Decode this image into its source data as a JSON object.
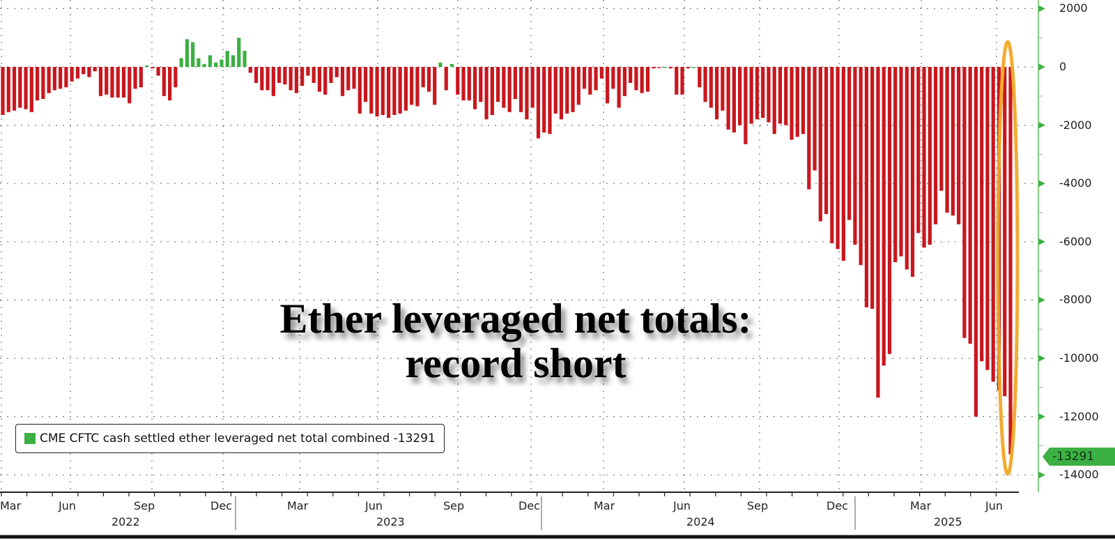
{
  "chart_data": {
    "type": "bar",
    "title": "Ether leveraged net totals: record short",
    "title_lines": [
      "Ether leveraged net totals:",
      "record short"
    ],
    "xlabel": "",
    "ylabel": "",
    "ylim": [
      -14500,
      2200
    ],
    "grid": true,
    "legend_position": "bottom-left",
    "legend": [
      {
        "label": "CME CFTC cash settled ether leveraged net total combined -13291",
        "color": "#3cb043"
      }
    ],
    "series": [
      {
        "name": "CME CFTC cash settled ether leveraged net total combined",
        "last_value": -13291
      }
    ],
    "x_month_ticks": [
      "Mar",
      "Jun",
      "Sep",
      "Dec",
      "Mar",
      "Jun",
      "Sep",
      "Dec",
      "Mar",
      "Jun",
      "Sep",
      "Dec",
      "Mar",
      "Jun"
    ],
    "x_year_labels": [
      "2022",
      "2023",
      "2024",
      "2025"
    ],
    "y_ticks": [
      2000,
      0,
      -2000,
      -4000,
      -6000,
      -8000,
      -10000,
      -12000,
      -14000
    ],
    "last_value_label": "-13291",
    "positive_color": "#3cb043",
    "negative_color": "#c8171e",
    "annotation": "orange ellipse highlighting latest bars",
    "values": [
      -1650,
      -1550,
      -1500,
      -1400,
      -1450,
      -1550,
      -1150,
      -1100,
      -900,
      -800,
      -750,
      -700,
      -500,
      -400,
      -250,
      -350,
      -150,
      -1000,
      -950,
      -1050,
      -1050,
      -1050,
      -1250,
      -750,
      -700,
      50,
      -50,
      -300,
      -1000,
      -1150,
      -700,
      300,
      950,
      850,
      300,
      100,
      400,
      150,
      250,
      550,
      400,
      1000,
      550,
      -200,
      -550,
      -800,
      -800,
      -1000,
      -550,
      -600,
      -800,
      -900,
      -650,
      -300,
      -550,
      -850,
      -950,
      -550,
      -350,
      -1000,
      -800,
      -750,
      -1600,
      -1200,
      -1600,
      -1700,
      -1650,
      -1750,
      -1650,
      -1600,
      -1500,
      -1300,
      -1350,
      -700,
      -850,
      -1300,
      150,
      -800,
      100,
      -950,
      -1150,
      -1150,
      -1450,
      -1200,
      -1800,
      -1650,
      -1200,
      -1400,
      -1550,
      -1100,
      -1550,
      -1800,
      -1400,
      -2450,
      -2250,
      -2300,
      -1600,
      -1800,
      -1600,
      -1550,
      -1300,
      -750,
      -950,
      -800,
      -400,
      -1250,
      -750,
      -1400,
      -1000,
      -550,
      -800,
      -900,
      -850,
      -50,
      -30,
      0,
      -50,
      -950,
      -950,
      -50,
      0,
      -700,
      -1200,
      -1400,
      -1800,
      -1500,
      -2150,
      -2250,
      -2000,
      -2650,
      -1950,
      -1800,
      -1750,
      -1900,
      -2300,
      -1950,
      -2000,
      -2500,
      -2400,
      -2300,
      -4200,
      -3550,
      -5300,
      -5050,
      -6050,
      -6250,
      -6650,
      -5250,
      -6100,
      -6800,
      -8250,
      -8300,
      -11350,
      -10250,
      -9850,
      -6700,
      -6500,
      -6950,
      -7200,
      -5700,
      -6200,
      -6100,
      -5400,
      -4250,
      -5000,
      -5100,
      -5400,
      -9300,
      -9500,
      -12000,
      -10100,
      -10400,
      -10800,
      -11100,
      -11300,
      -13291
    ]
  },
  "legend": {
    "text": "CME CFTC cash settled ether leveraged net total combined -13291"
  }
}
